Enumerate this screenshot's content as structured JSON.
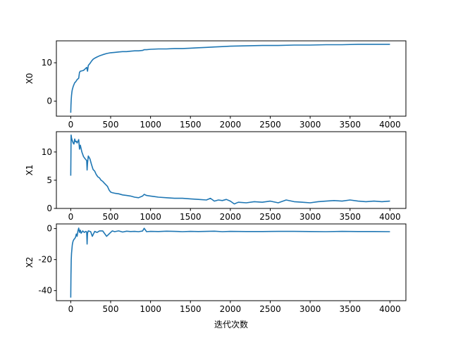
{
  "chart_data": [
    {
      "type": "line",
      "ylabel": "X0",
      "xlim": [
        -180,
        4200
      ],
      "ylim": [
        -3.9,
        15.7
      ],
      "xticks": [
        0,
        500,
        1000,
        1500,
        2000,
        2500,
        3000,
        3500,
        4000
      ],
      "yticks": [
        0,
        10
      ],
      "series": [
        {
          "color": "#1f77b4",
          "x": [
            0,
            3,
            6,
            10,
            15,
            20,
            30,
            40,
            50,
            60,
            70,
            80,
            90,
            100,
            110,
            120,
            140,
            160,
            180,
            200,
            210,
            220,
            240,
            260,
            280,
            300,
            330,
            360,
            400,
            450,
            500,
            550,
            600,
            650,
            700,
            750,
            800,
            850,
            900,
            920,
            950,
            1000,
            1100,
            1200,
            1300,
            1400,
            1500,
            1600,
            1700,
            1800,
            1900,
            2000,
            2200,
            2400,
            2600,
            2800,
            3000,
            3200,
            3400,
            3600,
            3800,
            4000
          ],
          "y": [
            -3.0,
            -1.0,
            0.5,
            1.5,
            2.5,
            3.0,
            3.8,
            4.3,
            4.8,
            5.0,
            5.3,
            5.6,
            5.8,
            6.0,
            7.5,
            7.8,
            7.9,
            8.0,
            8.4,
            8.8,
            7.8,
            9.3,
            9.8,
            10.4,
            10.9,
            11.2,
            11.5,
            11.8,
            12.1,
            12.4,
            12.6,
            12.7,
            12.8,
            12.9,
            12.9,
            13.0,
            13.1,
            13.1,
            13.2,
            13.4,
            13.4,
            13.5,
            13.6,
            13.6,
            13.7,
            13.7,
            13.8,
            13.9,
            14.0,
            14.1,
            14.2,
            14.3,
            14.4,
            14.5,
            14.5,
            14.6,
            14.6,
            14.7,
            14.7,
            14.8,
            14.8,
            14.8
          ]
        }
      ]
    },
    {
      "type": "line",
      "ylabel": "X1",
      "xlim": [
        -180,
        4200
      ],
      "ylim": [
        0,
        13.6
      ],
      "xticks": [
        0,
        500,
        1000,
        1500,
        2000,
        2500,
        3000,
        3500,
        4000
      ],
      "yticks": [
        0,
        5,
        10
      ],
      "series": [
        {
          "color": "#1f77b4",
          "x": [
            0,
            5,
            10,
            20,
            30,
            40,
            50,
            60,
            70,
            80,
            90,
            100,
            110,
            120,
            140,
            160,
            180,
            200,
            205,
            210,
            220,
            240,
            260,
            280,
            300,
            320,
            340,
            360,
            380,
            400,
            420,
            440,
            460,
            480,
            500,
            520,
            550,
            600,
            650,
            700,
            750,
            800,
            850,
            900,
            920,
            950,
            1000,
            1050,
            1100,
            1200,
            1300,
            1400,
            1500,
            1600,
            1700,
            1750,
            1800,
            1850,
            1900,
            1950,
            2000,
            2050,
            2100,
            2200,
            2300,
            2400,
            2500,
            2600,
            2700,
            2800,
            2900,
            3000,
            3100,
            3200,
            3300,
            3400,
            3500,
            3600,
            3700,
            3800,
            3900,
            4000
          ],
          "y": [
            5.8,
            13.0,
            12.5,
            12.0,
            11.6,
            11.4,
            12.3,
            11.8,
            11.9,
            11.6,
            11.9,
            12.2,
            10.5,
            11.2,
            10.0,
            9.2,
            8.8,
            8.5,
            6.8,
            8.0,
            9.3,
            8.8,
            7.8,
            6.9,
            6.6,
            6.0,
            5.6,
            5.4,
            5.0,
            4.8,
            4.5,
            4.2,
            3.9,
            3.3,
            2.9,
            2.8,
            2.7,
            2.6,
            2.4,
            2.3,
            2.2,
            2.0,
            1.9,
            2.2,
            2.5,
            2.3,
            2.2,
            2.1,
            2.0,
            1.9,
            1.8,
            1.8,
            1.7,
            1.6,
            1.5,
            1.8,
            1.3,
            1.5,
            1.4,
            1.6,
            1.3,
            0.8,
            1.1,
            1.0,
            1.2,
            1.1,
            1.3,
            1.0,
            1.5,
            1.2,
            1.1,
            1.0,
            1.2,
            1.3,
            1.4,
            1.3,
            1.5,
            1.3,
            1.2,
            1.3,
            1.2,
            1.3
          ]
        }
      ]
    },
    {
      "type": "line",
      "ylabel": "X2",
      "xlim": [
        -180,
        4200
      ],
      "ylim": [
        -46.5,
        3
      ],
      "xticks": [
        0,
        500,
        1000,
        1500,
        2000,
        2500,
        3000,
        3500,
        4000
      ],
      "yticks": [
        -40,
        -20,
        0
      ],
      "series": [
        {
          "color": "#1f77b4",
          "x": [
            0,
            3,
            6,
            10,
            15,
            20,
            25,
            30,
            40,
            50,
            60,
            70,
            80,
            90,
            100,
            110,
            120,
            130,
            150,
            170,
            190,
            200,
            205,
            210,
            220,
            250,
            270,
            300,
            330,
            360,
            400,
            450,
            500,
            520,
            550,
            600,
            650,
            700,
            750,
            800,
            850,
            900,
            920,
            950,
            1000,
            1100,
            1200,
            1300,
            1400,
            1500,
            1600,
            1700,
            1800,
            1900,
            2000,
            2200,
            2400,
            2600,
            2800,
            3000,
            3200,
            3400,
            3600,
            3800,
            4000
          ],
          "y": [
            -44.5,
            -30.0,
            -20.0,
            -16.0,
            -13.0,
            -10.5,
            -9.0,
            -8.0,
            -7.0,
            -6.5,
            -5.5,
            -3.5,
            -5.0,
            -1.5,
            0.3,
            -2.5,
            -1.0,
            -3.0,
            -1.5,
            -2.5,
            -1.8,
            -2.2,
            -10.0,
            -3.0,
            -1.5,
            -2.0,
            -5.0,
            -1.8,
            -2.5,
            -1.5,
            -1.5,
            -5.0,
            -2.5,
            -1.5,
            -2.0,
            -1.5,
            -2.2,
            -1.7,
            -1.9,
            -1.8,
            -2.0,
            -1.6,
            0.2,
            -2.0,
            -1.8,
            -1.9,
            -1.7,
            -1.8,
            -2.0,
            -1.8,
            -1.9,
            -1.8,
            -1.7,
            -2.0,
            -1.8,
            -1.9,
            -1.9,
            -1.8,
            -1.8,
            -1.9,
            -2.0,
            -1.8,
            -1.9,
            -1.9,
            -2.0
          ]
        }
      ]
    }
  ],
  "shared_xlabel": "迭代次数"
}
